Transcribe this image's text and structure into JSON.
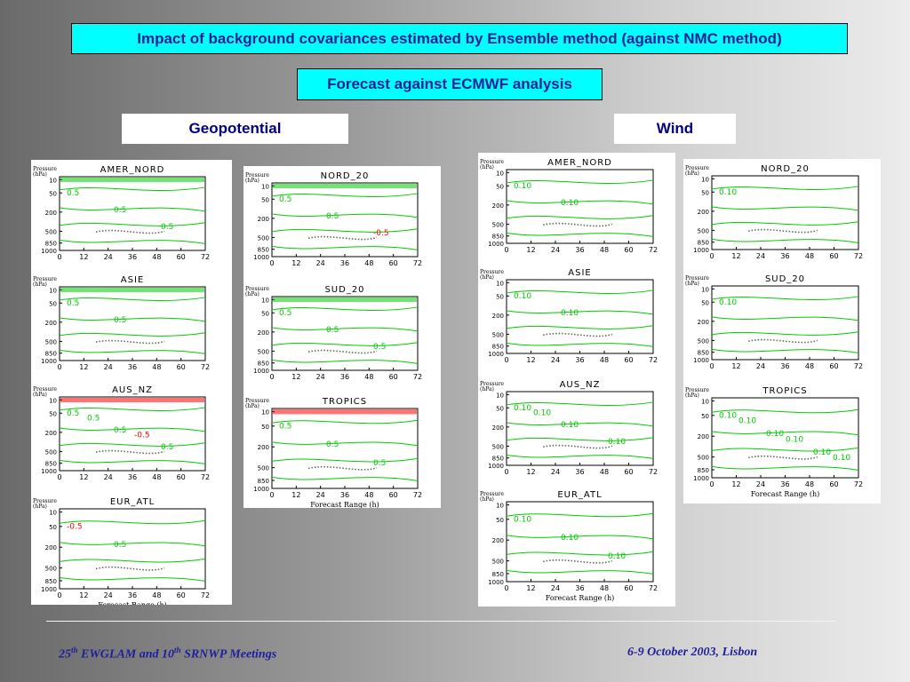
{
  "header": {
    "title": "Impact of background covariances estimated by Ensemble method (against NMC method)",
    "subtitle": "Forecast against ECMWF analysis"
  },
  "columns": {
    "geopotential": "Geopotential",
    "wind": "Wind"
  },
  "axis": {
    "ylabel_line1": "Pressure",
    "ylabel_line2": "(hPa)",
    "xlabel": "Forecast Range (h)",
    "y_ticks": [
      "10",
      "50",
      "200",
      "500",
      "850",
      "1000"
    ],
    "x_ticks": [
      "0",
      "12",
      "24",
      "36",
      "48",
      "60",
      "72"
    ]
  },
  "panels": [
    {
      "id": "geo-left",
      "plots": [
        {
          "title": "AMER_NORD",
          "labels": [
            "0.5",
            "0.5",
            "0.5"
          ]
        },
        {
          "title": "ASIE",
          "labels": [
            "0.5",
            "0.5"
          ]
        },
        {
          "title": "AUS_NZ",
          "labels": [
            "0.5",
            "0.5",
            "0.5",
            "0.5",
            "-0.5"
          ]
        },
        {
          "title": "EUR_ATL",
          "labels": [
            "-0.5",
            "0.5"
          ]
        }
      ]
    },
    {
      "id": "geo-right",
      "plots": [
        {
          "title": "NORD_20",
          "labels": [
            "0.5",
            "0.5",
            "-0.5"
          ]
        },
        {
          "title": "SUD_20",
          "labels": [
            "0.5",
            "0.5",
            "0.5"
          ]
        },
        {
          "title": "TROPICS",
          "labels": [
            "0.5",
            "0.5",
            "0.5"
          ]
        }
      ]
    },
    {
      "id": "wind-left",
      "plots": [
        {
          "title": "AMER_NORD",
          "labels": [
            "0.10",
            "0.10"
          ]
        },
        {
          "title": "ASIE",
          "labels": [
            "0.10",
            "0.10"
          ]
        },
        {
          "title": "AUS_NZ",
          "labels": [
            "0.10",
            "0.10",
            "0.10",
            "0.10"
          ]
        },
        {
          "title": "EUR_ATL",
          "labels": [
            "0.10",
            "0.10",
            "0.10"
          ]
        }
      ]
    },
    {
      "id": "wind-right",
      "plots": [
        {
          "title": "NORD_20",
          "labels": [
            "0.10"
          ]
        },
        {
          "title": "SUD_20",
          "labels": [
            "0.10"
          ]
        },
        {
          "title": "TROPICS",
          "labels": [
            "0.10",
            "0.10",
            "0.10",
            "0.10",
            "0.10",
            "0.10"
          ]
        }
      ]
    }
  ],
  "footer": {
    "left_prefix": "25",
    "left_sup1": "th",
    "left_mid": " EWGLAM and 10",
    "left_sup2": "th",
    "left_suffix": " SRNWP Meetings",
    "right": "6-9 October 2003, Lisbon"
  },
  "colors": {
    "contour": "#00cc00",
    "negative": "#ff0000",
    "dotted": "#666666",
    "banner": "#00ffff",
    "text": "#1f1f9a"
  }
}
